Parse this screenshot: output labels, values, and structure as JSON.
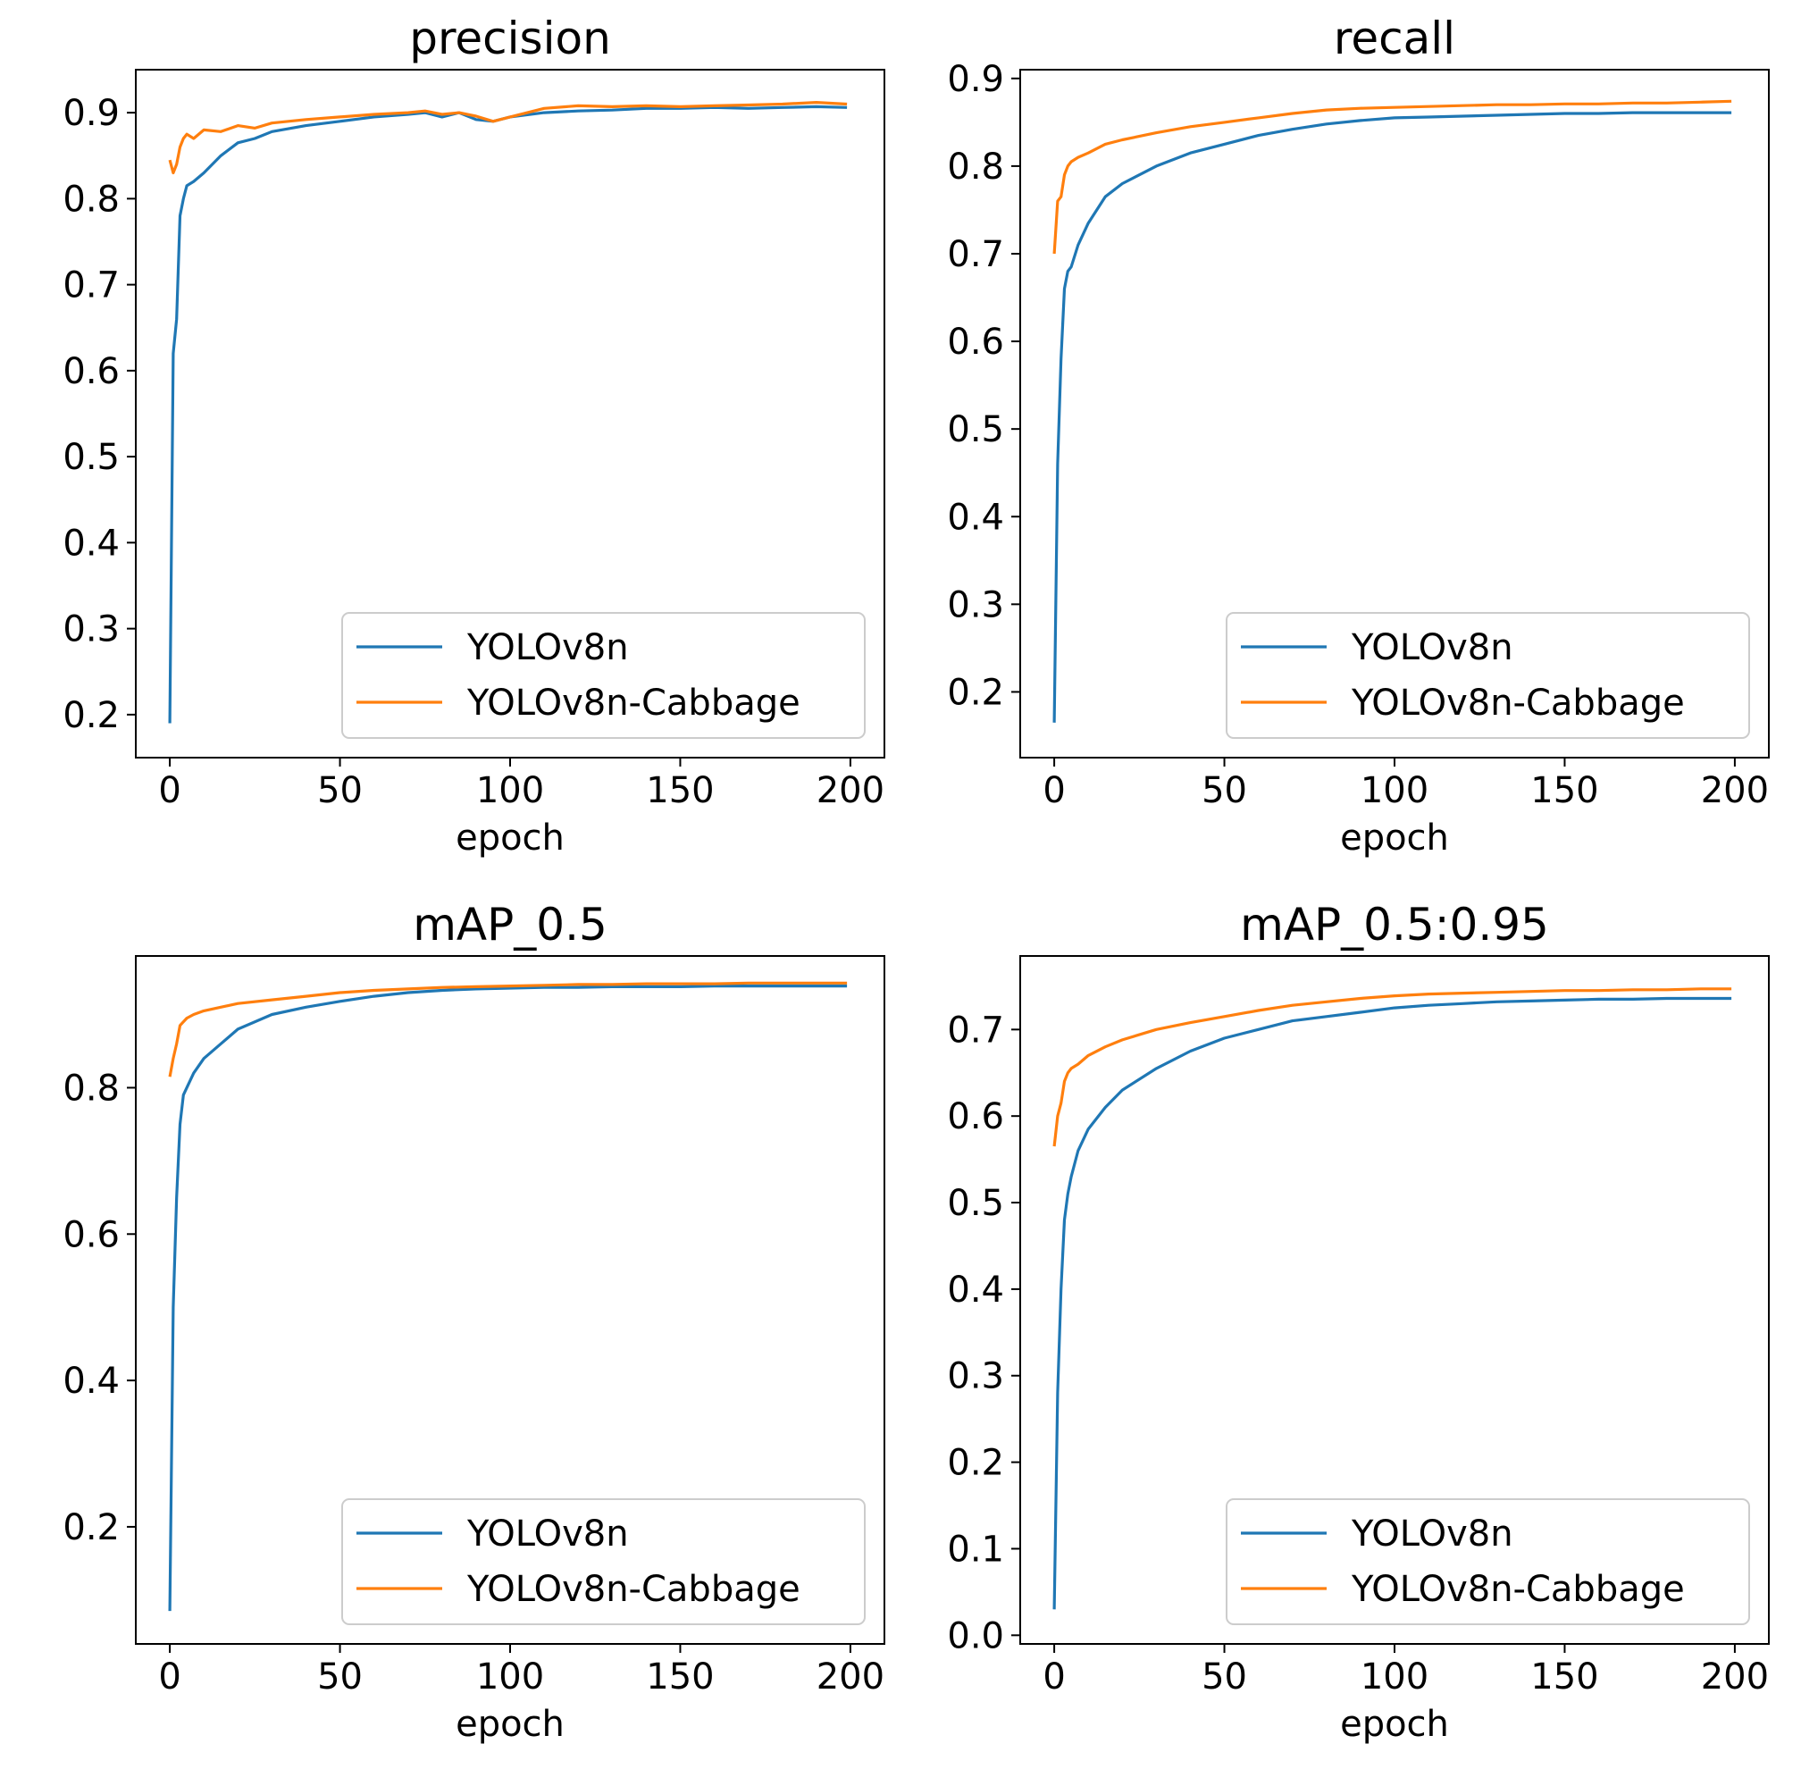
{
  "colors": {
    "series_1": "#1f77b4",
    "series_2": "#ff7f0e"
  },
  "chart_data": [
    {
      "type": "line",
      "title": "precision",
      "xlabel": "epoch",
      "ylabel": "",
      "xlim": [
        -10,
        210
      ],
      "ylim": [
        0.15,
        0.95
      ],
      "xticks": [
        0,
        50,
        100,
        150,
        200
      ],
      "yticks": [
        0.2,
        0.3,
        0.4,
        0.5,
        0.6,
        0.7,
        0.8,
        0.9
      ],
      "grid": false,
      "legend": "lower-right",
      "series": [
        {
          "name": "YOLOv8n",
          "x": [
            0,
            1,
            2,
            3,
            4,
            5,
            7,
            10,
            15,
            20,
            25,
            30,
            40,
            50,
            60,
            70,
            75,
            80,
            85,
            90,
            95,
            100,
            110,
            120,
            130,
            140,
            150,
            160,
            170,
            180,
            190,
            199
          ],
          "y": [
            0.19,
            0.62,
            0.66,
            0.78,
            0.8,
            0.815,
            0.82,
            0.83,
            0.85,
            0.865,
            0.87,
            0.878,
            0.885,
            0.89,
            0.895,
            0.898,
            0.9,
            0.895,
            0.9,
            0.892,
            0.89,
            0.895,
            0.9,
            0.902,
            0.903,
            0.905,
            0.905,
            0.906,
            0.905,
            0.906,
            0.907,
            0.906
          ]
        },
        {
          "name": "YOLOv8n-Cabbage",
          "x": [
            0,
            1,
            2,
            3,
            4,
            5,
            7,
            10,
            15,
            20,
            25,
            30,
            40,
            50,
            60,
            70,
            75,
            80,
            85,
            90,
            95,
            100,
            110,
            120,
            130,
            140,
            150,
            160,
            170,
            180,
            190,
            199
          ],
          "y": [
            0.845,
            0.83,
            0.84,
            0.86,
            0.87,
            0.875,
            0.87,
            0.88,
            0.878,
            0.885,
            0.882,
            0.888,
            0.892,
            0.895,
            0.898,
            0.9,
            0.902,
            0.898,
            0.9,
            0.896,
            0.89,
            0.895,
            0.905,
            0.908,
            0.907,
            0.908,
            0.907,
            0.908,
            0.909,
            0.91,
            0.912,
            0.91
          ]
        }
      ]
    },
    {
      "type": "line",
      "title": "recall",
      "xlabel": "epoch",
      "ylabel": "",
      "xlim": [
        -10,
        210
      ],
      "ylim": [
        0.125,
        0.91
      ],
      "xticks": [
        0,
        50,
        100,
        150,
        200
      ],
      "yticks": [
        0.2,
        0.3,
        0.4,
        0.5,
        0.6,
        0.7,
        0.8,
        0.9
      ],
      "grid": false,
      "legend": "lower-right",
      "series": [
        {
          "name": "YOLOv8n",
          "x": [
            0,
            1,
            2,
            3,
            4,
            5,
            7,
            10,
            15,
            20,
            30,
            40,
            50,
            60,
            70,
            80,
            90,
            100,
            110,
            120,
            130,
            140,
            150,
            160,
            170,
            180,
            190,
            199
          ],
          "y": [
            0.165,
            0.46,
            0.58,
            0.66,
            0.68,
            0.685,
            0.71,
            0.735,
            0.765,
            0.78,
            0.8,
            0.815,
            0.825,
            0.835,
            0.842,
            0.848,
            0.852,
            0.855,
            0.856,
            0.857,
            0.858,
            0.859,
            0.86,
            0.86,
            0.861,
            0.861,
            0.861,
            0.861
          ]
        },
        {
          "name": "YOLOv8n-Cabbage",
          "x": [
            0,
            1,
            2,
            3,
            4,
            5,
            7,
            10,
            15,
            20,
            30,
            40,
            50,
            60,
            70,
            80,
            90,
            100,
            110,
            120,
            130,
            140,
            150,
            160,
            170,
            180,
            190,
            199
          ],
          "y": [
            0.7,
            0.76,
            0.765,
            0.79,
            0.8,
            0.805,
            0.81,
            0.815,
            0.825,
            0.83,
            0.838,
            0.845,
            0.85,
            0.855,
            0.86,
            0.864,
            0.866,
            0.867,
            0.868,
            0.869,
            0.87,
            0.87,
            0.871,
            0.871,
            0.872,
            0.872,
            0.873,
            0.874
          ]
        }
      ]
    },
    {
      "type": "line",
      "title": "mAP_0.5",
      "xlabel": "epoch",
      "ylabel": "",
      "xlim": [
        -10,
        210
      ],
      "ylim": [
        0.04,
        0.98
      ],
      "xticks": [
        0,
        50,
        100,
        150,
        200
      ],
      "yticks": [
        0.2,
        0.4,
        0.6,
        0.8
      ],
      "grid": false,
      "legend": "lower-right",
      "series": [
        {
          "name": "YOLOv8n",
          "x": [
            0,
            1,
            2,
            3,
            4,
            5,
            7,
            10,
            15,
            20,
            30,
            40,
            50,
            60,
            70,
            80,
            90,
            100,
            110,
            120,
            130,
            140,
            150,
            160,
            170,
            180,
            190,
            199
          ],
          "y": [
            0.085,
            0.5,
            0.65,
            0.75,
            0.79,
            0.8,
            0.82,
            0.84,
            0.86,
            0.88,
            0.9,
            0.91,
            0.918,
            0.925,
            0.93,
            0.933,
            0.935,
            0.936,
            0.937,
            0.937,
            0.938,
            0.938,
            0.938,
            0.939,
            0.939,
            0.939,
            0.939,
            0.939
          ]
        },
        {
          "name": "YOLOv8n-Cabbage",
          "x": [
            0,
            1,
            2,
            3,
            4,
            5,
            7,
            10,
            15,
            20,
            30,
            40,
            50,
            60,
            70,
            80,
            90,
            100,
            110,
            120,
            130,
            140,
            150,
            160,
            170,
            180,
            190,
            199
          ],
          "y": [
            0.815,
            0.84,
            0.86,
            0.885,
            0.89,
            0.895,
            0.9,
            0.905,
            0.91,
            0.915,
            0.92,
            0.925,
            0.93,
            0.933,
            0.935,
            0.937,
            0.938,
            0.939,
            0.94,
            0.941,
            0.941,
            0.942,
            0.942,
            0.942,
            0.943,
            0.943,
            0.943,
            0.943
          ]
        }
      ]
    },
    {
      "type": "line",
      "title": "mAP_0.5:0.95",
      "xlabel": "epoch",
      "ylabel": "",
      "xlim": [
        -10,
        210
      ],
      "ylim": [
        -0.01,
        0.785
      ],
      "xticks": [
        0,
        50,
        100,
        150,
        200
      ],
      "yticks": [
        0.0,
        0.1,
        0.2,
        0.3,
        0.4,
        0.5,
        0.6,
        0.7
      ],
      "grid": false,
      "legend": "lower-right",
      "series": [
        {
          "name": "YOLOv8n",
          "x": [
            0,
            1,
            2,
            3,
            4,
            5,
            7,
            10,
            15,
            20,
            30,
            40,
            50,
            60,
            70,
            80,
            90,
            100,
            110,
            120,
            130,
            140,
            150,
            160,
            170,
            180,
            190,
            199
          ],
          "y": [
            0.03,
            0.28,
            0.4,
            0.48,
            0.51,
            0.53,
            0.56,
            0.585,
            0.61,
            0.63,
            0.655,
            0.675,
            0.69,
            0.7,
            0.71,
            0.715,
            0.72,
            0.725,
            0.728,
            0.73,
            0.732,
            0.733,
            0.734,
            0.735,
            0.735,
            0.736,
            0.736,
            0.736
          ]
        },
        {
          "name": "YOLOv8n-Cabbage",
          "x": [
            0,
            1,
            2,
            3,
            4,
            5,
            7,
            10,
            15,
            20,
            30,
            40,
            50,
            60,
            70,
            80,
            90,
            100,
            110,
            120,
            130,
            140,
            150,
            160,
            170,
            180,
            190,
            199
          ],
          "y": [
            0.565,
            0.6,
            0.615,
            0.64,
            0.65,
            0.655,
            0.66,
            0.67,
            0.68,
            0.688,
            0.7,
            0.708,
            0.715,
            0.722,
            0.728,
            0.732,
            0.736,
            0.739,
            0.741,
            0.742,
            0.743,
            0.744,
            0.745,
            0.745,
            0.746,
            0.746,
            0.747,
            0.747
          ]
        }
      ]
    }
  ]
}
